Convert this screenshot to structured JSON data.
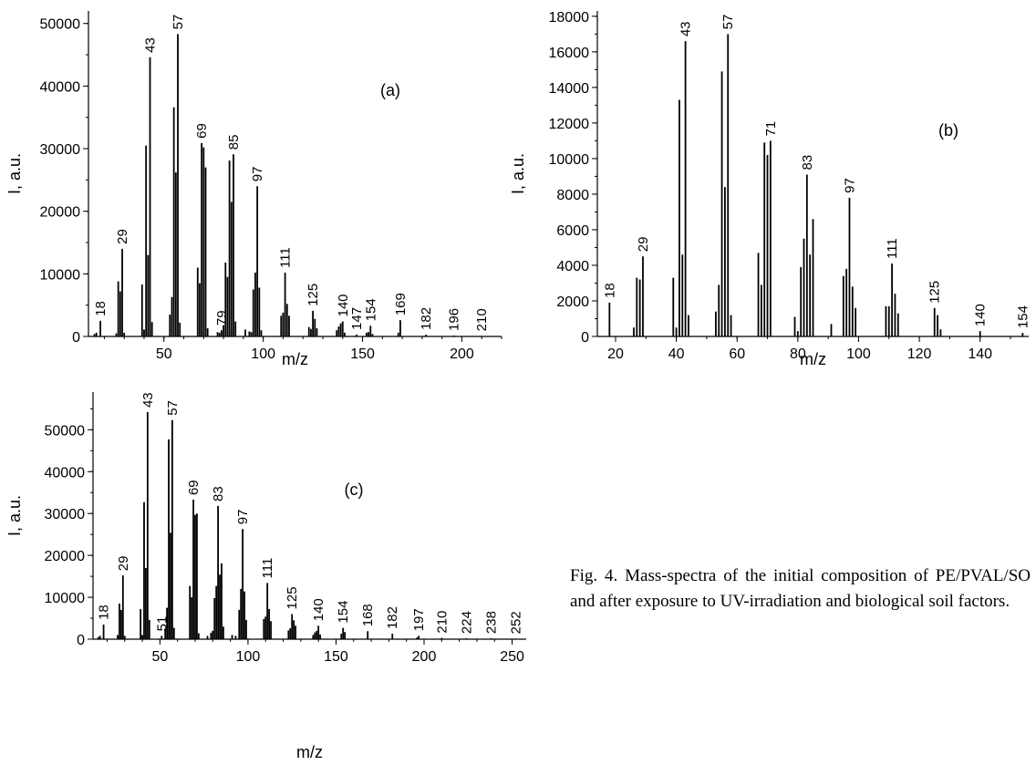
{
  "caption": "Fig. 4. Mass-spectra of the initial composi­tion of PE/PVAL/SO and after exposure to UV-irradiation and biological soil factors.",
  "chart_data": [
    {
      "type": "bar",
      "id": "a",
      "panel_label": "(a)",
      "xlabel": "m/z",
      "ylabel": "I, a.u.",
      "xlim": [
        12,
        220
      ],
      "ylim": [
        0,
        52000
      ],
      "xticks": [
        50,
        100,
        150,
        200
      ],
      "yticks": [
        0,
        10000,
        20000,
        30000,
        40000,
        50000
      ],
      "bars": [
        [
          15,
          400
        ],
        [
          16,
          600
        ],
        [
          18,
          2500
        ],
        [
          26,
          500
        ],
        [
          27,
          8800
        ],
        [
          28,
          7200
        ],
        [
          29,
          14000
        ],
        [
          30,
          600
        ],
        [
          39,
          8300
        ],
        [
          40,
          1100
        ],
        [
          41,
          30500
        ],
        [
          42,
          13000
        ],
        [
          43,
          44600
        ],
        [
          44,
          2300
        ],
        [
          53,
          3500
        ],
        [
          54,
          6300
        ],
        [
          55,
          36600
        ],
        [
          56,
          26200
        ],
        [
          57,
          48300
        ],
        [
          58,
          2200
        ],
        [
          67,
          11000
        ],
        [
          68,
          8500
        ],
        [
          69,
          30900
        ],
        [
          70,
          30200
        ],
        [
          71,
          27000
        ],
        [
          72,
          1300
        ],
        [
          77,
          700
        ],
        [
          78,
          600
        ],
        [
          79,
          1000
        ],
        [
          80,
          1800
        ],
        [
          81,
          11800
        ],
        [
          82,
          9500
        ],
        [
          83,
          28100
        ],
        [
          84,
          21500
        ],
        [
          85,
          29100
        ],
        [
          86,
          2400
        ],
        [
          91,
          1100
        ],
        [
          93,
          800
        ],
        [
          94,
          700
        ],
        [
          95,
          7500
        ],
        [
          96,
          10200
        ],
        [
          97,
          24000
        ],
        [
          98,
          7800
        ],
        [
          99,
          1000
        ],
        [
          109,
          3300
        ],
        [
          110,
          3800
        ],
        [
          111,
          10200
        ],
        [
          112,
          5200
        ],
        [
          113,
          3300
        ],
        [
          123,
          1500
        ],
        [
          124,
          1200
        ],
        [
          125,
          4100
        ],
        [
          126,
          2800
        ],
        [
          127,
          1300
        ],
        [
          137,
          1000
        ],
        [
          138,
          1600
        ],
        [
          139,
          2100
        ],
        [
          140,
          2400
        ],
        [
          141,
          600
        ],
        [
          147,
          300
        ],
        [
          152,
          600
        ],
        [
          153,
          700
        ],
        [
          154,
          1700
        ],
        [
          155,
          400
        ],
        [
          168,
          600
        ],
        [
          169,
          2600
        ],
        [
          182,
          300
        ],
        [
          196,
          150
        ],
        [
          210,
          100
        ]
      ],
      "peak_labels": [
        {
          "mz": 18,
          "text": "18"
        },
        {
          "mz": 29,
          "text": "29"
        },
        {
          "mz": 43,
          "text": "43"
        },
        {
          "mz": 57,
          "text": "57"
        },
        {
          "mz": 69,
          "text": "69"
        },
        {
          "mz": 79,
          "text": "79"
        },
        {
          "mz": 85,
          "text": "85"
        },
        {
          "mz": 97,
          "text": "97"
        },
        {
          "mz": 111,
          "text": "111"
        },
        {
          "mz": 125,
          "text": "125"
        },
        {
          "mz": 140,
          "text": "140"
        },
        {
          "mz": 147,
          "text": "147"
        },
        {
          "mz": 154,
          "text": "154"
        },
        {
          "mz": 169,
          "text": "169"
        },
        {
          "mz": 182,
          "text": "182"
        },
        {
          "mz": 196,
          "text": "196"
        },
        {
          "mz": 210,
          "text": "210"
        }
      ]
    },
    {
      "type": "bar",
      "id": "b",
      "panel_label": "(b)",
      "xlabel": "m/z",
      "ylabel": "I, a.u.",
      "xlim": [
        14,
        156
      ],
      "ylim": [
        0,
        18300
      ],
      "xticks": [
        20,
        40,
        60,
        80,
        100,
        120,
        140
      ],
      "yticks": [
        0,
        2000,
        4000,
        6000,
        8000,
        10000,
        12000,
        14000,
        16000,
        18000
      ],
      "bars": [
        [
          18,
          1900
        ],
        [
          26,
          500
        ],
        [
          27,
          3300
        ],
        [
          28,
          3200
        ],
        [
          29,
          4500
        ],
        [
          39,
          3300
        ],
        [
          40,
          500
        ],
        [
          41,
          13300
        ],
        [
          42,
          4600
        ],
        [
          43,
          16600
        ],
        [
          44,
          1200
        ],
        [
          53,
          1400
        ],
        [
          54,
          2900
        ],
        [
          55,
          14900
        ],
        [
          56,
          8400
        ],
        [
          57,
          17000
        ],
        [
          58,
          1200
        ],
        [
          67,
          4700
        ],
        [
          68,
          2900
        ],
        [
          69,
          10900
        ],
        [
          70,
          10200
        ],
        [
          71,
          11000
        ],
        [
          79,
          1100
        ],
        [
          80,
          300
        ],
        [
          81,
          3900
        ],
        [
          82,
          5500
        ],
        [
          83,
          9100
        ],
        [
          84,
          4600
        ],
        [
          85,
          6600
        ],
        [
          91,
          700
        ],
        [
          95,
          3400
        ],
        [
          96,
          3800
        ],
        [
          97,
          7800
        ],
        [
          98,
          2800
        ],
        [
          99,
          1600
        ],
        [
          109,
          1700
        ],
        [
          110,
          1700
        ],
        [
          111,
          4100
        ],
        [
          112,
          2400
        ],
        [
          113,
          1300
        ],
        [
          125,
          1600
        ],
        [
          126,
          1200
        ],
        [
          127,
          400
        ],
        [
          140,
          300
        ],
        [
          154,
          200
        ]
      ],
      "peak_labels": [
        {
          "mz": 18,
          "text": "18"
        },
        {
          "mz": 29,
          "text": "29"
        },
        {
          "mz": 43,
          "text": "43"
        },
        {
          "mz": 57,
          "text": "57"
        },
        {
          "mz": 71,
          "text": "71"
        },
        {
          "mz": 83,
          "text": "83"
        },
        {
          "mz": 97,
          "text": "97"
        },
        {
          "mz": 111,
          "text": "111"
        },
        {
          "mz": 125,
          "text": "125"
        },
        {
          "mz": 140,
          "text": "140"
        },
        {
          "mz": 154,
          "text": "154"
        }
      ]
    },
    {
      "type": "bar",
      "id": "c",
      "panel_label": "(c)",
      "xlabel": "m/z",
      "ylabel": "I, a.u.",
      "xlim": [
        12,
        258
      ],
      "ylim": [
        0,
        59000
      ],
      "xticks": [
        50,
        100,
        150,
        200,
        250
      ],
      "yticks": [
        0,
        10000,
        20000,
        30000,
        40000,
        50000
      ],
      "bars": [
        [
          15,
          500
        ],
        [
          16,
          800
        ],
        [
          18,
          3500
        ],
        [
          26,
          1000
        ],
        [
          27,
          8500
        ],
        [
          28,
          7000
        ],
        [
          29,
          15200
        ],
        [
          30,
          800
        ],
        [
          39,
          7200
        ],
        [
          40,
          1000
        ],
        [
          41,
          32700
        ],
        [
          42,
          17000
        ],
        [
          43,
          54200
        ],
        [
          44,
          4600
        ],
        [
          51,
          800
        ],
        [
          53,
          2500
        ],
        [
          54,
          7500
        ],
        [
          55,
          47700
        ],
        [
          56,
          25400
        ],
        [
          57,
          52300
        ],
        [
          58,
          2700
        ],
        [
          67,
          12700
        ],
        [
          68,
          10000
        ],
        [
          69,
          33300
        ],
        [
          70,
          29700
        ],
        [
          71,
          30000
        ],
        [
          72,
          1400
        ],
        [
          77,
          800
        ],
        [
          79,
          1500
        ],
        [
          80,
          2000
        ],
        [
          81,
          9800
        ],
        [
          82,
          12700
        ],
        [
          83,
          31800
        ],
        [
          84,
          15400
        ],
        [
          85,
          18100
        ],
        [
          86,
          3000
        ],
        [
          91,
          1000
        ],
        [
          93,
          800
        ],
        [
          95,
          7000
        ],
        [
          96,
          12000
        ],
        [
          97,
          26300
        ],
        [
          98,
          11400
        ],
        [
          99,
          4600
        ],
        [
          109,
          4800
        ],
        [
          110,
          5400
        ],
        [
          111,
          13400
        ],
        [
          112,
          7200
        ],
        [
          113,
          4300
        ],
        [
          123,
          2100
        ],
        [
          124,
          2600
        ],
        [
          125,
          6000
        ],
        [
          126,
          4500
        ],
        [
          127,
          3200
        ],
        [
          137,
          1000
        ],
        [
          138,
          1600
        ],
        [
          139,
          2000
        ],
        [
          140,
          3200
        ],
        [
          141,
          1100
        ],
        [
          153,
          1300
        ],
        [
          154,
          2700
        ],
        [
          155,
          1700
        ],
        [
          168,
          1900
        ],
        [
          182,
          1300
        ],
        [
          196,
          400
        ],
        [
          197,
          800
        ],
        [
          210,
          300
        ],
        [
          224,
          200
        ],
        [
          238,
          200
        ],
        [
          252,
          150
        ]
      ],
      "peak_labels": [
        {
          "mz": 18,
          "text": "18"
        },
        {
          "mz": 29,
          "text": "29"
        },
        {
          "mz": 43,
          "text": "43"
        },
        {
          "mz": 51,
          "text": "51"
        },
        {
          "mz": 57,
          "text": "57"
        },
        {
          "mz": 69,
          "text": "69"
        },
        {
          "mz": 83,
          "text": "83"
        },
        {
          "mz": 97,
          "text": "97"
        },
        {
          "mz": 111,
          "text": "111"
        },
        {
          "mz": 125,
          "text": "125"
        },
        {
          "mz": 140,
          "text": "140"
        },
        {
          "mz": 154,
          "text": "154"
        },
        {
          "mz": 168,
          "text": "168"
        },
        {
          "mz": 182,
          "text": "182"
        },
        {
          "mz": 197,
          "text": "197"
        },
        {
          "mz": 210,
          "text": "210"
        },
        {
          "mz": 224,
          "text": "224"
        },
        {
          "mz": 238,
          "text": "238"
        },
        {
          "mz": 252,
          "text": "252"
        }
      ]
    }
  ]
}
